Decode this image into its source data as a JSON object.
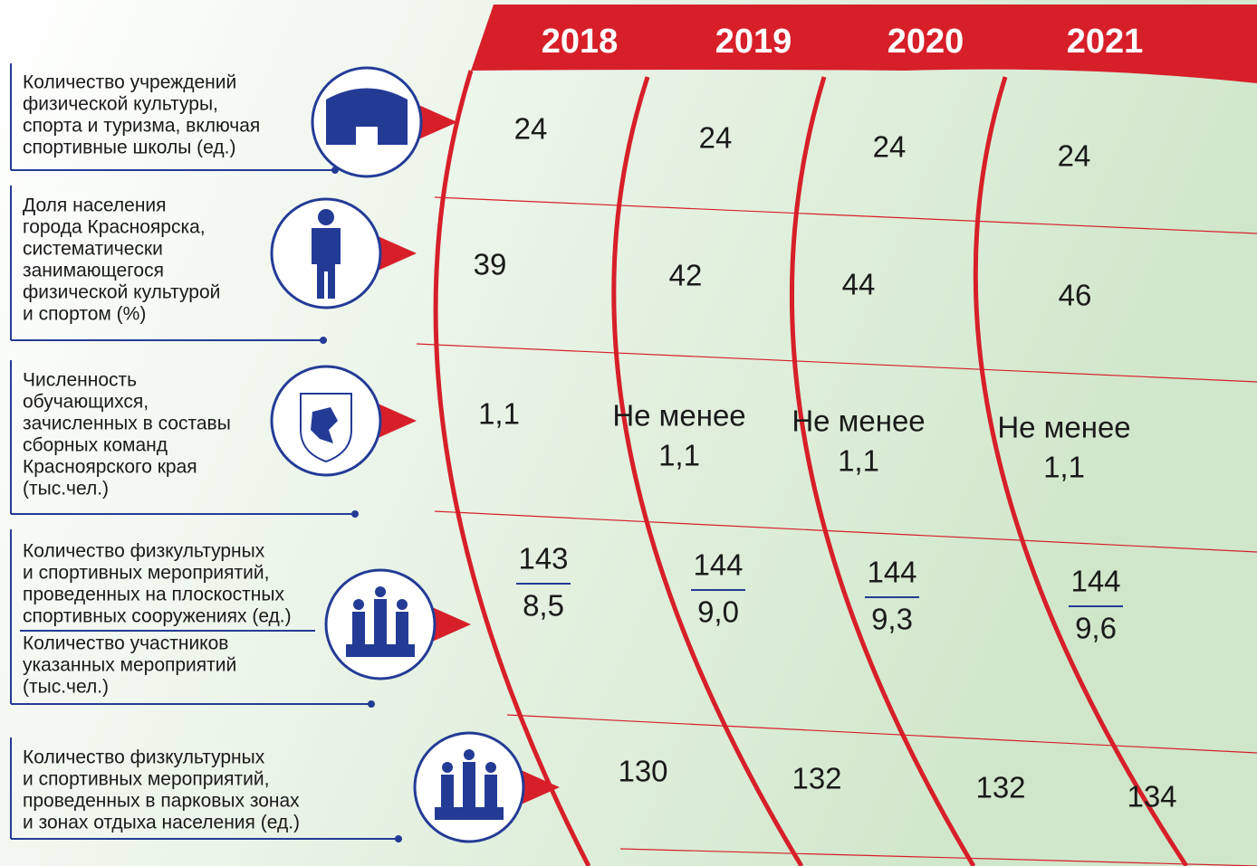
{
  "years": [
    "2018",
    "2019",
    "2020",
    "2021"
  ],
  "rows": [
    {
      "label": [
        "Количество учреждений",
        "физической культуры,",
        "спорта и туризма, включая",
        "спортивные школы (ед.)"
      ],
      "values": [
        [
          "24"
        ],
        [
          "24"
        ],
        [
          "24"
        ],
        [
          "24"
        ]
      ]
    },
    {
      "label": [
        "Доля населения",
        "города Красноярска,",
        "систематически",
        "занимающегося",
        "физической культурой",
        "и спортом (%)"
      ],
      "values": [
        [
          "39"
        ],
        [
          "42"
        ],
        [
          "44"
        ],
        [
          "46"
        ]
      ]
    },
    {
      "label": [
        "Численность",
        "обучающихся,",
        "зачисленных в составы",
        "сборных команд",
        "Красноярского края",
        "(тыс.чел.)"
      ],
      "values": [
        [
          "1,1"
        ],
        [
          "Не менее",
          "1,1"
        ],
        [
          "Не менее",
          "1,1"
        ],
        [
          "Не менее",
          "1,1"
        ]
      ]
    },
    {
      "label": [
        "Количество физкультурных",
        "и спортивных мероприятий,",
        "проведенных на плоскостных",
        "спортивных сооружениях (ед.)"
      ],
      "label2": [
        "Количество участников",
        "указанных мероприятий",
        "(тыс.чел.)"
      ],
      "values": [
        [
          "143",
          "8,5"
        ],
        [
          "144",
          "9,0"
        ],
        [
          "144",
          "9,3"
        ],
        [
          "144",
          "9,6"
        ]
      ]
    },
    {
      "label": [
        "Количество физкультурных",
        "и спортивных мероприятий,",
        "проведенных в парковых зонах",
        "и зонах отдыха населения (ед.)"
      ],
      "values": [
        [
          "130"
        ],
        [
          "132"
        ],
        [
          "132"
        ],
        [
          "134"
        ]
      ]
    }
  ]
}
